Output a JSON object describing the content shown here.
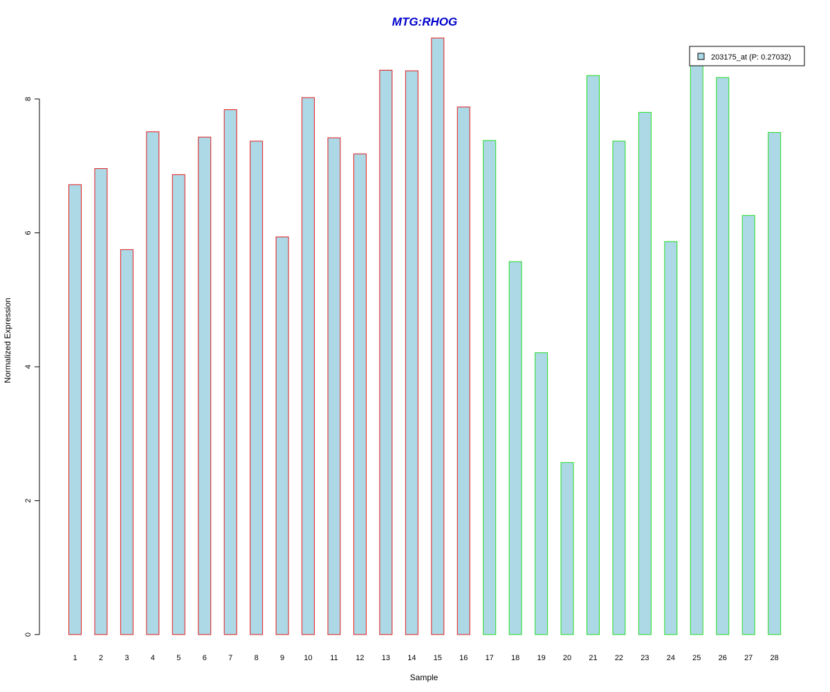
{
  "chart_data": {
    "type": "bar",
    "title": "MTG:RHOG",
    "xlabel": "Sample",
    "ylabel": "Normalized Expression",
    "categories": [
      "1",
      "2",
      "3",
      "4",
      "5",
      "6",
      "7",
      "8",
      "9",
      "10",
      "11",
      "12",
      "13",
      "14",
      "15",
      "16",
      "17",
      "18",
      "19",
      "20",
      "21",
      "22",
      "23",
      "24",
      "25",
      "26",
      "27",
      "28"
    ],
    "series": [
      {
        "name": "203175_at (P: 0.27032)",
        "values": [
          6.72,
          6.96,
          5.75,
          7.51,
          6.87,
          7.43,
          7.84,
          7.37,
          5.94,
          8.02,
          7.42,
          7.18,
          8.43,
          8.42,
          8.91,
          7.88,
          7.38,
          5.57,
          4.21,
          2.57,
          8.35,
          7.37,
          7.8,
          5.87,
          8.55,
          8.32,
          6.26,
          7.5
        ]
      }
    ],
    "groups": [
      {
        "samples": "1-16",
        "border_color": "#e31a1c"
      },
      {
        "samples": "17-28",
        "border_color": "#22dd22"
      }
    ],
    "yticks": [
      0,
      2,
      4,
      6,
      8
    ],
    "ylim": [
      0,
      9
    ],
    "grid": false,
    "legend_position": "top-right",
    "colors": {
      "bar_fill": "#add8e6",
      "title": "#0000cc",
      "axis": "#000000"
    }
  }
}
